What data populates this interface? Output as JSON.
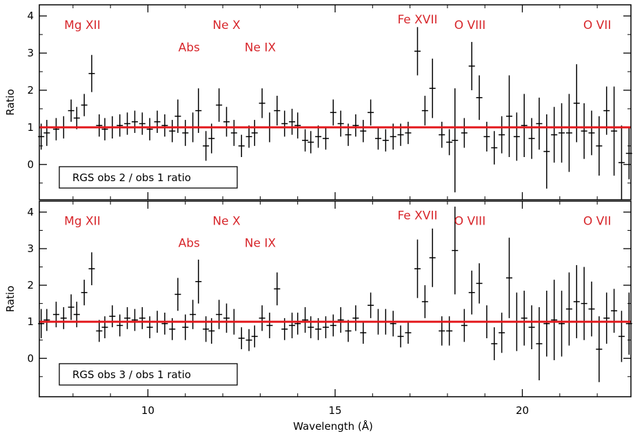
{
  "chart_data": {
    "type": "scatter",
    "xlabel": "Wavelength (Å)",
    "xlim": [
      7.1,
      22.9
    ],
    "x_ticks": [
      10,
      15,
      20
    ],
    "ref_color": "#e3171b",
    "label_color": "#d7262b",
    "panels": [
      {
        "legend": "RGS obs 2 / obs 1 ratio",
        "ylabel": "Ratio",
        "ylim": [
          -0.95,
          4.3
        ],
        "y_ticks": [
          0,
          1,
          2,
          3,
          4
        ],
        "reference_line": 1.0,
        "line_labels": [
          {
            "text": "Mg XII",
            "x": 8.25,
            "y": 3.65
          },
          {
            "text": "Abs",
            "x": 11.1,
            "y": 3.05
          },
          {
            "text": "Ne X",
            "x": 12.1,
            "y": 3.65
          },
          {
            "text": "Ne IX",
            "x": 13.0,
            "y": 3.05
          },
          {
            "text": "Fe XVII",
            "x": 17.2,
            "y": 3.8
          },
          {
            "text": "O VIII",
            "x": 18.6,
            "y": 3.65
          },
          {
            "text": "O VII",
            "x": 22.0,
            "y": 3.65
          }
        ],
        "points": [
          [
            7.15,
            0.75,
            0.35
          ],
          [
            7.3,
            0.85,
            0.35
          ],
          [
            7.55,
            0.95,
            0.3
          ],
          [
            7.75,
            1.0,
            0.3
          ],
          [
            7.95,
            1.45,
            0.3
          ],
          [
            8.1,
            1.25,
            0.3
          ],
          [
            8.3,
            1.6,
            0.3
          ],
          [
            8.5,
            2.45,
            0.5
          ],
          [
            8.7,
            1.05,
            0.3
          ],
          [
            8.85,
            0.95,
            0.3
          ],
          [
            9.05,
            1.0,
            0.3
          ],
          [
            9.25,
            1.05,
            0.3
          ],
          [
            9.45,
            1.1,
            0.3
          ],
          [
            9.65,
            1.15,
            0.3
          ],
          [
            9.85,
            1.1,
            0.3
          ],
          [
            10.05,
            0.95,
            0.3
          ],
          [
            10.25,
            1.15,
            0.3
          ],
          [
            10.45,
            1.05,
            0.3
          ],
          [
            10.65,
            0.9,
            0.3
          ],
          [
            10.8,
            1.3,
            0.45
          ],
          [
            11.0,
            0.85,
            0.35
          ],
          [
            11.2,
            1.0,
            0.4
          ],
          [
            11.35,
            1.45,
            0.6
          ],
          [
            11.55,
            0.5,
            0.4
          ],
          [
            11.7,
            0.7,
            0.4
          ],
          [
            11.9,
            1.6,
            0.45
          ],
          [
            12.1,
            1.15,
            0.4
          ],
          [
            12.3,
            0.85,
            0.35
          ],
          [
            12.5,
            0.5,
            0.3
          ],
          [
            12.7,
            0.75,
            0.3
          ],
          [
            12.85,
            0.85,
            0.35
          ],
          [
            13.05,
            1.65,
            0.4
          ],
          [
            13.25,
            1.0,
            0.4
          ],
          [
            13.45,
            1.45,
            0.4
          ],
          [
            13.65,
            1.1,
            0.35
          ],
          [
            13.85,
            1.15,
            0.35
          ],
          [
            14.0,
            1.05,
            0.35
          ],
          [
            14.2,
            0.65,
            0.3
          ],
          [
            14.35,
            0.6,
            0.3
          ],
          [
            14.55,
            0.75,
            0.3
          ],
          [
            14.75,
            0.7,
            0.3
          ],
          [
            14.95,
            1.4,
            0.35
          ],
          [
            15.15,
            1.1,
            0.35
          ],
          [
            15.35,
            0.8,
            0.3
          ],
          [
            15.55,
            1.05,
            0.3
          ],
          [
            15.75,
            0.9,
            0.3
          ],
          [
            15.95,
            1.4,
            0.35
          ],
          [
            16.15,
            0.7,
            0.3
          ],
          [
            16.35,
            0.65,
            0.3
          ],
          [
            16.55,
            0.75,
            0.35
          ],
          [
            16.75,
            0.8,
            0.3
          ],
          [
            16.95,
            0.85,
            0.3
          ],
          [
            17.2,
            3.05,
            0.65
          ],
          [
            17.4,
            1.45,
            0.4
          ],
          [
            17.6,
            2.05,
            0.8
          ],
          [
            17.85,
            0.8,
            0.35
          ],
          [
            18.05,
            0.6,
            0.35
          ],
          [
            18.2,
            0.65,
            1.4
          ],
          [
            18.45,
            0.85,
            0.4
          ],
          [
            18.65,
            2.65,
            0.65
          ],
          [
            18.85,
            1.8,
            0.6
          ],
          [
            19.05,
            0.75,
            0.4
          ],
          [
            19.25,
            0.45,
            0.45
          ],
          [
            19.45,
            0.8,
            0.5
          ],
          [
            19.65,
            1.3,
            1.1
          ],
          [
            19.85,
            0.75,
            0.65
          ],
          [
            20.05,
            1.05,
            0.85
          ],
          [
            20.25,
            0.7,
            0.55
          ],
          [
            20.45,
            1.1,
            0.7
          ],
          [
            20.65,
            0.35,
            1.0
          ],
          [
            20.85,
            0.8,
            0.75
          ],
          [
            21.05,
            0.85,
            0.8
          ],
          [
            21.25,
            0.85,
            1.05
          ],
          [
            21.45,
            1.65,
            1.05
          ],
          [
            21.65,
            0.9,
            0.75
          ],
          [
            21.85,
            0.85,
            0.6
          ],
          [
            22.05,
            0.5,
            0.8
          ],
          [
            22.25,
            1.45,
            0.65
          ],
          [
            22.45,
            0.9,
            1.2
          ],
          [
            22.65,
            0.05,
            1.0
          ],
          [
            22.85,
            0.3,
            0.7
          ]
        ]
      },
      {
        "legend": "RGS obs 3 / obs 1 ratio",
        "ylabel": "Ratio",
        "ylim": [
          -1.05,
          4.3
        ],
        "y_ticks": [
          0,
          1,
          2,
          3,
          4
        ],
        "reference_line": 1.0,
        "line_labels": [
          {
            "text": "Mg XII",
            "x": 8.25,
            "y": 3.65
          },
          {
            "text": "Abs",
            "x": 11.1,
            "y": 3.05
          },
          {
            "text": "Ne X",
            "x": 12.1,
            "y": 3.65
          },
          {
            "text": "Ne IX",
            "x": 13.0,
            "y": 3.05
          },
          {
            "text": "Fe XVII",
            "x": 17.2,
            "y": 3.8
          },
          {
            "text": "O VIII",
            "x": 18.6,
            "y": 3.65
          },
          {
            "text": "O VII",
            "x": 22.0,
            "y": 3.65
          }
        ],
        "points": [
          [
            7.15,
            0.95,
            0.4
          ],
          [
            7.3,
            1.05,
            0.3
          ],
          [
            7.55,
            1.2,
            0.35
          ],
          [
            7.75,
            1.1,
            0.3
          ],
          [
            7.95,
            1.4,
            0.35
          ],
          [
            8.1,
            1.2,
            0.35
          ],
          [
            8.3,
            1.8,
            0.35
          ],
          [
            8.5,
            2.45,
            0.45
          ],
          [
            8.7,
            0.75,
            0.3
          ],
          [
            8.85,
            0.85,
            0.3
          ],
          [
            9.05,
            1.15,
            0.3
          ],
          [
            9.25,
            0.9,
            0.3
          ],
          [
            9.45,
            1.1,
            0.3
          ],
          [
            9.65,
            1.05,
            0.3
          ],
          [
            9.85,
            1.1,
            0.3
          ],
          [
            10.05,
            0.85,
            0.3
          ],
          [
            10.25,
            1.0,
            0.3
          ],
          [
            10.45,
            0.95,
            0.3
          ],
          [
            10.65,
            0.8,
            0.3
          ],
          [
            10.8,
            1.75,
            0.45
          ],
          [
            11.0,
            0.85,
            0.35
          ],
          [
            11.2,
            1.2,
            0.4
          ],
          [
            11.35,
            2.1,
            0.6
          ],
          [
            11.55,
            0.8,
            0.35
          ],
          [
            11.7,
            0.75,
            0.35
          ],
          [
            11.9,
            1.2,
            0.4
          ],
          [
            12.1,
            1.1,
            0.4
          ],
          [
            12.3,
            1.0,
            0.35
          ],
          [
            12.5,
            0.55,
            0.3
          ],
          [
            12.7,
            0.5,
            0.3
          ],
          [
            12.85,
            0.6,
            0.3
          ],
          [
            13.05,
            1.1,
            0.35
          ],
          [
            13.25,
            0.9,
            0.35
          ],
          [
            13.45,
            1.9,
            0.45
          ],
          [
            13.65,
            0.8,
            0.3
          ],
          [
            13.85,
            0.9,
            0.35
          ],
          [
            14.0,
            0.95,
            0.3
          ],
          [
            14.2,
            1.05,
            0.35
          ],
          [
            14.35,
            0.85,
            0.3
          ],
          [
            14.55,
            0.8,
            0.3
          ],
          [
            14.75,
            0.85,
            0.3
          ],
          [
            14.95,
            0.9,
            0.3
          ],
          [
            15.15,
            1.05,
            0.35
          ],
          [
            15.35,
            0.75,
            0.3
          ],
          [
            15.55,
            1.1,
            0.35
          ],
          [
            15.75,
            0.7,
            0.3
          ],
          [
            15.95,
            1.45,
            0.35
          ],
          [
            16.15,
            1.0,
            0.35
          ],
          [
            16.35,
            1.0,
            0.35
          ],
          [
            16.55,
            0.95,
            0.35
          ],
          [
            16.75,
            0.6,
            0.3
          ],
          [
            16.95,
            0.7,
            0.3
          ],
          [
            17.2,
            2.45,
            0.8
          ],
          [
            17.4,
            1.55,
            0.45
          ],
          [
            17.6,
            2.75,
            0.8
          ],
          [
            17.85,
            0.75,
            0.4
          ],
          [
            18.05,
            0.75,
            0.4
          ],
          [
            18.2,
            2.95,
            1.2
          ],
          [
            18.45,
            0.9,
            0.45
          ],
          [
            18.65,
            1.8,
            0.6
          ],
          [
            18.85,
            2.05,
            0.55
          ],
          [
            19.05,
            1.0,
            0.45
          ],
          [
            19.25,
            0.4,
            0.45
          ],
          [
            19.45,
            0.7,
            0.55
          ],
          [
            19.65,
            2.2,
            1.1
          ],
          [
            19.85,
            1.0,
            0.8
          ],
          [
            20.05,
            1.1,
            0.75
          ],
          [
            20.25,
            0.85,
            0.6
          ],
          [
            20.45,
            0.4,
            1.0
          ],
          [
            20.65,
            0.95,
            0.9
          ],
          [
            20.85,
            1.05,
            1.1
          ],
          [
            21.05,
            0.95,
            0.9
          ],
          [
            21.25,
            1.35,
            1.0
          ],
          [
            21.45,
            1.55,
            1.0
          ],
          [
            21.65,
            1.5,
            1.0
          ],
          [
            21.85,
            1.35,
            0.75
          ],
          [
            22.05,
            0.25,
            0.9
          ],
          [
            22.25,
            1.1,
            0.7
          ],
          [
            22.45,
            1.3,
            0.6
          ],
          [
            22.65,
            0.6,
            0.7
          ],
          [
            22.85,
            0.95,
            0.85
          ]
        ]
      }
    ]
  }
}
